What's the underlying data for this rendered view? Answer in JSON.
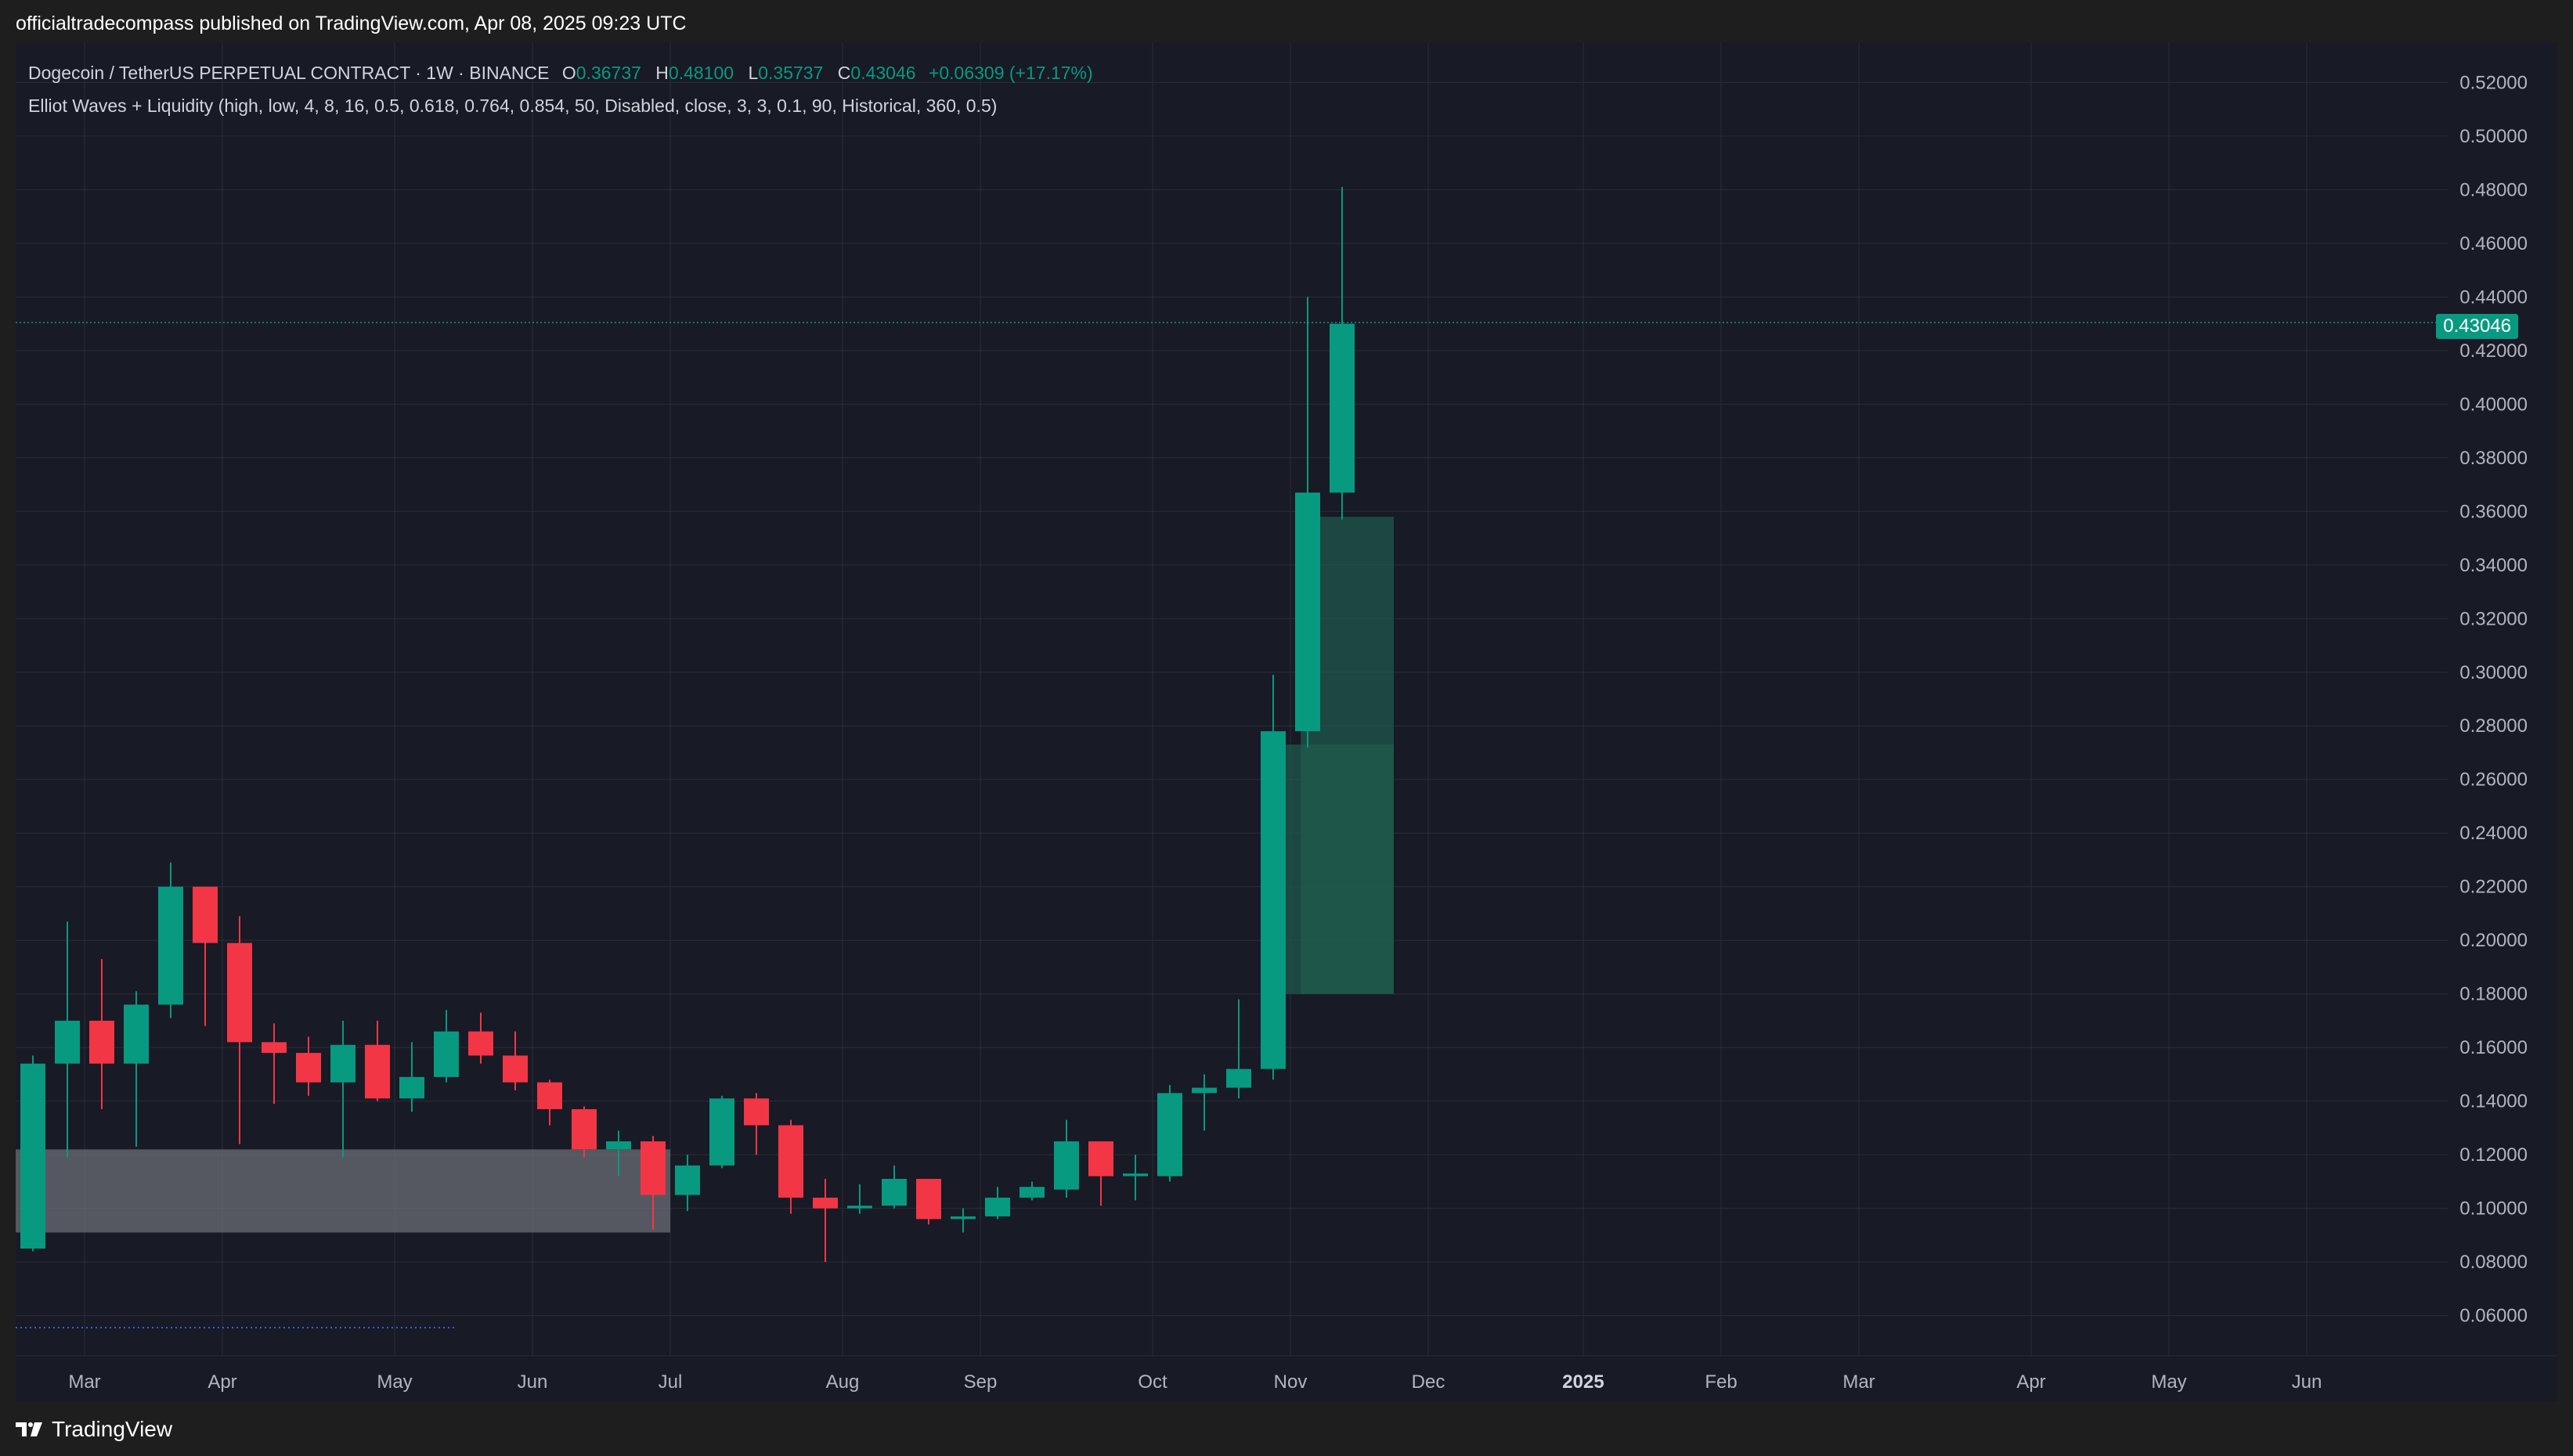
{
  "header": {
    "published": "officialtradecompass published on TradingView.com, Apr 08, 2025 09:23 UTC"
  },
  "legend": {
    "symbol": "Dogecoin / TetherUS PERPETUAL CONTRACT · 1W · BINANCE",
    "o_label": "O",
    "o_value": "0.36737",
    "h_label": "H",
    "h_value": "0.48100",
    "l_label": "L",
    "l_value": "0.35737",
    "c_label": "C",
    "c_value": "0.43046",
    "change": "+0.06309 (+17.17%)",
    "indicator": "Elliot Waves + Liquidity (high, low, 4, 8, 16, 0.5, 0.618, 0.764, 0.854, 50, Disabled, close, 3, 3, 0.1, 90, Historical, 360, 0.5)"
  },
  "footer": {
    "brand": "TradingView"
  },
  "colors": {
    "up": "#089981",
    "down": "#f23645",
    "grid": "#2a2e39",
    "axis_text": "#b2b5be",
    "zone_green": "#1f5c4f",
    "zone_gray": "#6b6d76"
  },
  "chart_data": {
    "type": "candlestick",
    "ylim": [
      0.045,
      0.535
    ],
    "y_ticks": [
      "0.52000",
      "0.50000",
      "0.48000",
      "0.46000",
      "0.44000",
      "0.42000",
      "0.40000",
      "0.38000",
      "0.36000",
      "0.34000",
      "0.32000",
      "0.30000",
      "0.28000",
      "0.26000",
      "0.24000",
      "0.22000",
      "0.20000",
      "0.18000",
      "0.16000",
      "0.14000",
      "0.12000",
      "0.10000",
      "0.08000",
      "0.06000"
    ],
    "current_price": "0.43046",
    "x_ticks": [
      {
        "label": "Mar",
        "i": 1.5
      },
      {
        "label": "Apr",
        "i": 5.5
      },
      {
        "label": "May",
        "i": 10.5
      },
      {
        "label": "Jun",
        "i": 14.5
      },
      {
        "label": "Jul",
        "i": 18.5
      },
      {
        "label": "Aug",
        "i": 23.5
      },
      {
        "label": "Sep",
        "i": 27.5
      },
      {
        "label": "Oct",
        "i": 32.5
      },
      {
        "label": "Nov",
        "i": 36.5
      },
      {
        "label": "Dec",
        "i": 40.5
      },
      {
        "label": "2025",
        "i": 45,
        "bold": true
      },
      {
        "label": "Feb",
        "i": 49
      },
      {
        "label": "Mar",
        "i": 53
      },
      {
        "label": "Apr",
        "i": 58
      },
      {
        "label": "May",
        "i": 62
      },
      {
        "label": "Jun",
        "i": 66
      }
    ],
    "candles": [
      {
        "o": 0.085,
        "h": 0.157,
        "l": 0.084,
        "c": 0.154
      },
      {
        "o": 0.154,
        "h": 0.207,
        "l": 0.119,
        "c": 0.17
      },
      {
        "o": 0.17,
        "h": 0.193,
        "l": 0.137,
        "c": 0.154
      },
      {
        "o": 0.154,
        "h": 0.181,
        "l": 0.123,
        "c": 0.176
      },
      {
        "o": 0.176,
        "h": 0.229,
        "l": 0.171,
        "c": 0.22
      },
      {
        "o": 0.22,
        "h": 0.22,
        "l": 0.168,
        "c": 0.199
      },
      {
        "o": 0.199,
        "h": 0.209,
        "l": 0.124,
        "c": 0.162
      },
      {
        "o": 0.162,
        "h": 0.169,
        "l": 0.139,
        "c": 0.158
      },
      {
        "o": 0.158,
        "h": 0.164,
        "l": 0.142,
        "c": 0.147
      },
      {
        "o": 0.147,
        "h": 0.17,
        "l": 0.119,
        "c": 0.161
      },
      {
        "o": 0.161,
        "h": 0.17,
        "l": 0.14,
        "c": 0.141
      },
      {
        "o": 0.141,
        "h": 0.162,
        "l": 0.136,
        "c": 0.149
      },
      {
        "o": 0.149,
        "h": 0.174,
        "l": 0.147,
        "c": 0.166
      },
      {
        "o": 0.166,
        "h": 0.173,
        "l": 0.154,
        "c": 0.157
      },
      {
        "o": 0.157,
        "h": 0.166,
        "l": 0.144,
        "c": 0.147
      },
      {
        "o": 0.147,
        "h": 0.148,
        "l": 0.131,
        "c": 0.137
      },
      {
        "o": 0.137,
        "h": 0.138,
        "l": 0.119,
        "c": 0.122
      },
      {
        "o": 0.122,
        "h": 0.129,
        "l": 0.112,
        "c": 0.125
      },
      {
        "o": 0.125,
        "h": 0.127,
        "l": 0.092,
        "c": 0.105
      },
      {
        "o": 0.105,
        "h": 0.12,
        "l": 0.099,
        "c": 0.116
      },
      {
        "o": 0.116,
        "h": 0.142,
        "l": 0.115,
        "c": 0.141
      },
      {
        "o": 0.141,
        "h": 0.143,
        "l": 0.12,
        "c": 0.131
      },
      {
        "o": 0.131,
        "h": 0.133,
        "l": 0.098,
        "c": 0.104
      },
      {
        "o": 0.104,
        "h": 0.111,
        "l": 0.08,
        "c": 0.1
      },
      {
        "o": 0.1,
        "h": 0.109,
        "l": 0.098,
        "c": 0.101
      },
      {
        "o": 0.101,
        "h": 0.116,
        "l": 0.1,
        "c": 0.111
      },
      {
        "o": 0.111,
        "h": 0.111,
        "l": 0.094,
        "c": 0.096
      },
      {
        "o": 0.096,
        "h": 0.1,
        "l": 0.091,
        "c": 0.097
      },
      {
        "o": 0.097,
        "h": 0.108,
        "l": 0.096,
        "c": 0.104
      },
      {
        "o": 0.104,
        "h": 0.11,
        "l": 0.103,
        "c": 0.108
      },
      {
        "o": 0.107,
        "h": 0.133,
        "l": 0.104,
        "c": 0.125
      },
      {
        "o": 0.125,
        "h": 0.125,
        "l": 0.101,
        "c": 0.112
      },
      {
        "o": 0.112,
        "h": 0.12,
        "l": 0.103,
        "c": 0.113
      },
      {
        "o": 0.112,
        "h": 0.146,
        "l": 0.11,
        "c": 0.143
      },
      {
        "o": 0.143,
        "h": 0.15,
        "l": 0.129,
        "c": 0.145
      },
      {
        "o": 0.145,
        "h": 0.178,
        "l": 0.141,
        "c": 0.152
      },
      {
        "o": 0.152,
        "h": 0.299,
        "l": 0.148,
        "c": 0.278
      },
      {
        "o": 0.278,
        "h": 0.44,
        "l": 0.272,
        "c": 0.367
      },
      {
        "o": 0.367,
        "h": 0.481,
        "l": 0.357,
        "c": 0.43
      }
    ],
    "zones": [
      {
        "kind": "liquidity",
        "x0": -0.5,
        "x1": 18.5,
        "y0": 0.091,
        "y1": 0.122
      },
      {
        "kind": "fib",
        "x0": 35.8,
        "x1": 39.5,
        "y0": 0.18,
        "y1": 0.273
      },
      {
        "kind": "fib",
        "x0": 36.8,
        "x1": 39.5,
        "y0": 0.18,
        "y1": 0.358
      }
    ]
  }
}
